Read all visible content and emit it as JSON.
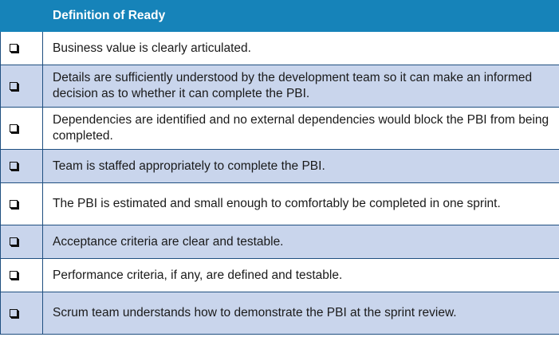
{
  "table": {
    "header": {
      "first_cell": "",
      "title": "Definition of Ready"
    },
    "rows": [
      {
        "checkbox": "",
        "text": "Business value is clearly articulated."
      },
      {
        "checkbox": "",
        "text": "Details are sufficiently understood by the development team so it can make an informed decision as to whether it can complete the PBI."
      },
      {
        "checkbox": "",
        "text": "Dependencies are identified and no external dependencies would block the PBI from being completed."
      },
      {
        "checkbox": "",
        "text": "Team is staffed appropriately to complete the PBI."
      },
      {
        "checkbox": "",
        "text": "The PBI is estimated and small enough to comfortably be completed in one sprint."
      },
      {
        "checkbox": "",
        "text": "Acceptance criteria are clear and testable."
      },
      {
        "checkbox": "",
        "text": "Performance criteria, if any, are defined and testable."
      },
      {
        "checkbox": "",
        "text": "Scrum team understands how to demonstrate the PBI at the sprint review."
      }
    ]
  },
  "colors": {
    "header_bg": "#1683b9",
    "alt_row_bg": "#c9d5ec",
    "border": "#1f4f80"
  },
  "icons": {
    "checkbox": "checkbox-icon"
  }
}
